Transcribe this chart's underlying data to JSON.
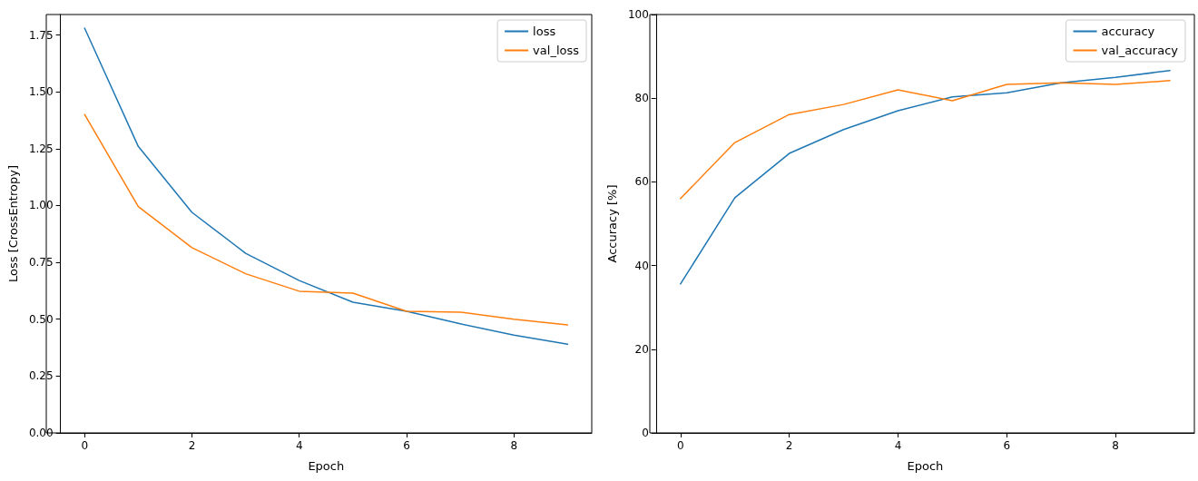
{
  "chart_data": [
    {
      "type": "line",
      "xlabel": "Epoch",
      "ylabel": "Loss [CrossEntropy]",
      "x": [
        0,
        1,
        2,
        3,
        4,
        5,
        6,
        7,
        8,
        9
      ],
      "xlim": [
        -0.45,
        9.45
      ],
      "xticks": [
        0,
        2,
        4,
        6,
        8
      ],
      "ylim": [
        0,
        1.84
      ],
      "yticks": [
        {
          "value": 0,
          "label": "0.00"
        },
        {
          "value": 0.25,
          "label": "0.25"
        },
        {
          "value": 0.5,
          "label": "0.50"
        },
        {
          "value": 0.75,
          "label": "0.75"
        },
        {
          "value": 1,
          "label": "1.00"
        },
        {
          "value": 1.25,
          "label": "1.25"
        },
        {
          "value": 1.5,
          "label": "1.50"
        },
        {
          "value": 1.75,
          "label": "1.75"
        }
      ],
      "grid": false,
      "legend": "top right",
      "marker": "none",
      "line_style": "solid",
      "series": [
        {
          "name": "loss",
          "color": "#1f77b4",
          "values": [
            1.78,
            1.26,
            0.97,
            0.79,
            0.67,
            0.575,
            0.535,
            0.48,
            0.43,
            0.39
          ]
        },
        {
          "name": "val_loss",
          "color": "#ff7f0e",
          "values": [
            1.4,
            0.995,
            0.815,
            0.7,
            0.623,
            0.615,
            0.535,
            0.531,
            0.5,
            0.475
          ]
        }
      ]
    },
    {
      "type": "line",
      "xlabel": "Epoch",
      "ylabel": "Accuracy [%]",
      "x": [
        0,
        1,
        2,
        3,
        4,
        5,
        6,
        7,
        8,
        9
      ],
      "xlim": [
        -0.45,
        9.45
      ],
      "xticks": [
        0,
        2,
        4,
        6,
        8
      ],
      "ylim": [
        0,
        100
      ],
      "yticks": [
        0,
        20,
        40,
        60,
        80,
        100
      ],
      "grid": false,
      "legend": "top right",
      "marker": "none",
      "line_style": "solid",
      "series": [
        {
          "name": "accuracy",
          "color": "#1f77b4",
          "values": [
            35.6,
            56.2,
            66.8,
            72.5,
            77.0,
            80.3,
            81.3,
            83.7,
            85.0,
            86.6
          ]
        },
        {
          "name": "val_accuracy",
          "color": "#ff7f0e",
          "values": [
            56.0,
            69.4,
            76.1,
            78.5,
            82.0,
            79.4,
            83.3,
            83.7,
            83.3,
            84.2
          ]
        }
      ]
    }
  ]
}
